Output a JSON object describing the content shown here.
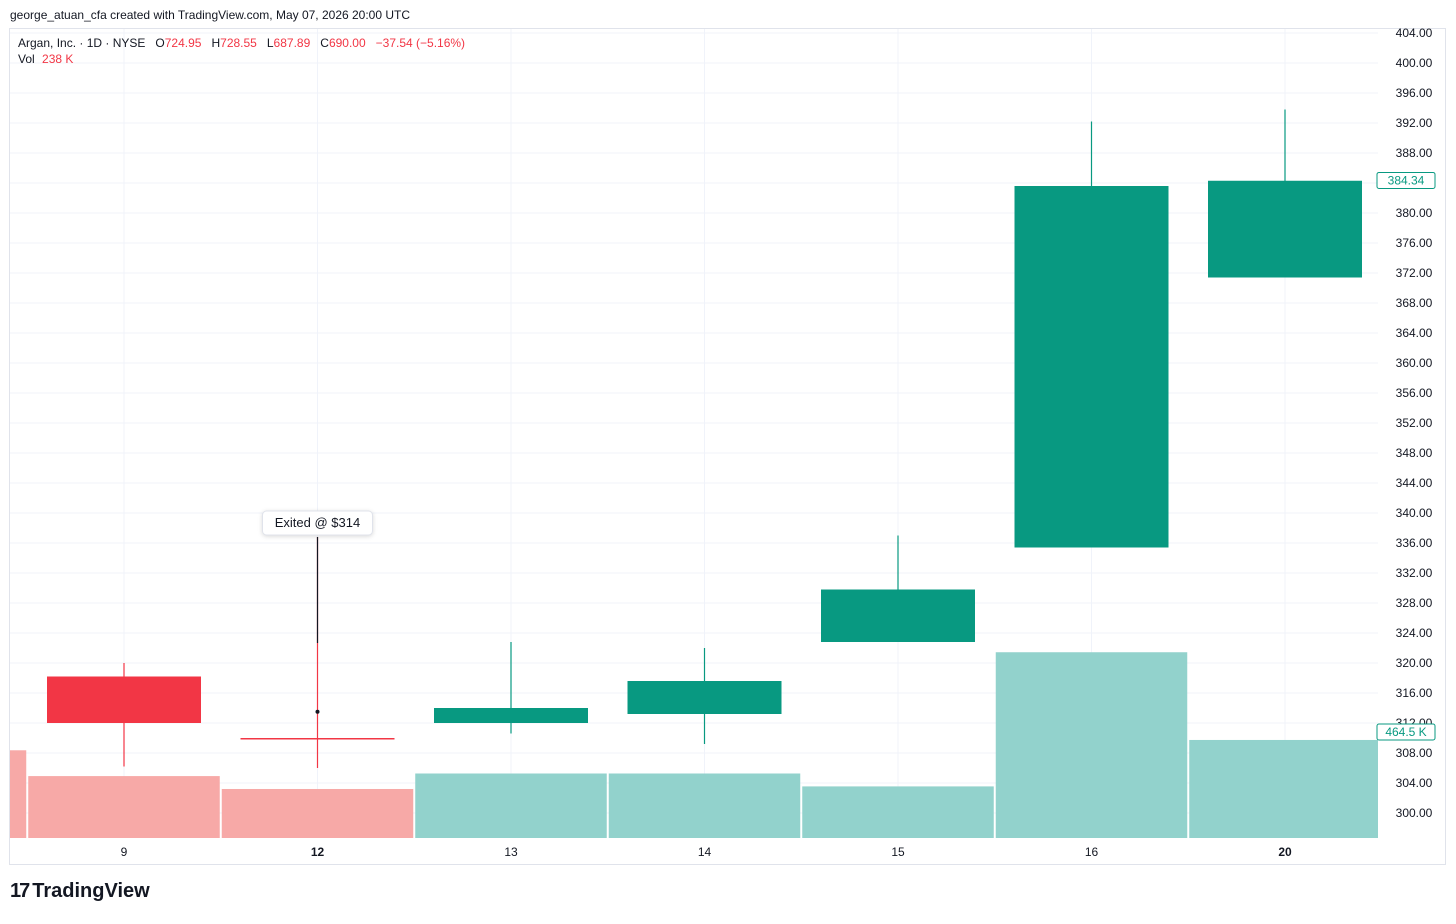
{
  "header": {
    "attribution": "george_atuan_cfa created with TradingView.com, May 07, 2026 20:00 UTC"
  },
  "legend": {
    "symbol": "Argan, Inc. · 1D · NYSE",
    "o_label": "O",
    "o_value": "724.95",
    "h_label": "H",
    "h_value": "728.55",
    "l_label": "L",
    "l_value": "687.89",
    "c_label": "C",
    "c_value": "690.00",
    "change": "−37.54 (−5.16%)",
    "vol_label": "Vol",
    "vol_value": "238 K"
  },
  "footer": {
    "logo": "17",
    "brand": "TradingView"
  },
  "colors": {
    "up": "#089981",
    "down": "#f23645",
    "vol_up": "#92d2cc",
    "vol_down": "#f7a9a7",
    "grid": "#f0f3fa",
    "text": "#131722"
  },
  "chart_data": {
    "type": "candlestick",
    "ylim": [
      297.0,
      405.0
    ],
    "y_ticks": [
      "404.00",
      "400.00",
      "396.00",
      "392.00",
      "388.00",
      "384.00",
      "380.00",
      "376.00",
      "372.00",
      "368.00",
      "364.00",
      "360.00",
      "356.00",
      "352.00",
      "348.00",
      "344.00",
      "340.00",
      "336.00",
      "332.00",
      "328.00",
      "324.00",
      "320.00",
      "316.00",
      "312.00",
      "308.00",
      "304.00",
      "300.00"
    ],
    "x_labels": [
      {
        "label": "9",
        "bold": false
      },
      {
        "label": "12",
        "bold": true
      },
      {
        "label": "13",
        "bold": false
      },
      {
        "label": "14",
        "bold": false
      },
      {
        "label": "15",
        "bold": false
      },
      {
        "label": "16",
        "bold": false
      },
      {
        "label": "20",
        "bold": true
      }
    ],
    "candles": [
      {
        "date": "9",
        "open": 318.2,
        "high": 320.0,
        "low": 306.2,
        "close": 312.0
      },
      {
        "date": "12",
        "open": 310.0,
        "high": 336.8,
        "low": 306.0,
        "close": 310.0
      },
      {
        "date": "13",
        "open": 312.0,
        "high": 322.8,
        "low": 310.6,
        "close": 314.0
      },
      {
        "date": "14",
        "open": 313.2,
        "high": 322.0,
        "low": 309.2,
        "close": 317.6
      },
      {
        "date": "15",
        "open": 322.8,
        "high": 337.0,
        "low": 322.8,
        "close": 329.8
      },
      {
        "date": "16",
        "open": 335.4,
        "high": 392.2,
        "low": 335.4,
        "close": 383.6
      },
      {
        "date": "20",
        "open": 371.4,
        "high": 393.8,
        "low": 371.4,
        "close": 384.3
      }
    ],
    "volume": [
      {
        "date": "8",
        "dir": "down",
        "value": 0.34
      },
      {
        "date": "9",
        "dir": "down",
        "value": 0.24
      },
      {
        "date": "12",
        "dir": "down",
        "value": 0.19
      },
      {
        "date": "13",
        "dir": "up",
        "value": 0.25
      },
      {
        "date": "14",
        "dir": "up",
        "value": 0.25
      },
      {
        "date": "15",
        "dir": "up",
        "value": 0.2
      },
      {
        "date": "16",
        "dir": "up",
        "value": 0.72
      },
      {
        "date": "20",
        "dir": "up",
        "value": 0.38
      }
    ],
    "last_price_label": "384.34",
    "last_volume_label": "464.5 K",
    "annotation": {
      "text": "Exited @ $314",
      "date": "12",
      "price": 313.5
    }
  }
}
